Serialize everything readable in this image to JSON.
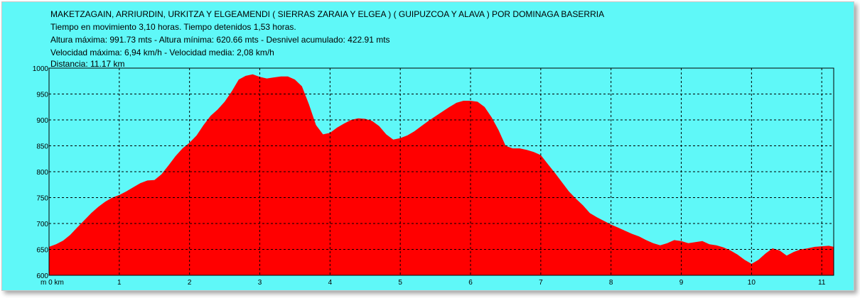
{
  "header": {
    "title": "MAKETZAGAIN, ARRIURDIN, URKITZA Y ELGEAMENDI ( SIERRAS ZARAIA Y ELGEA ) ( GUIPUZCOA Y ALAVA ) POR DOMINAGA BASERRIA",
    "times": "Tiempo en movimiento 3,10 horas. Tiempo detenidos 1,53 horas.",
    "altitudes": "Altura máxima: 991.73 mts - Altura mínima: 620.66 mts - Desnivel acumulado: 422.91 mts",
    "speeds": "Velocidad máxima: 6,94  km/h - Velocidad media: 2,08  km/h",
    "distance": "Distancia: 11.17 km"
  },
  "colors": {
    "background": "#5ff8f8",
    "fill": "#ff0000",
    "grid": "#000000"
  },
  "chart_data": {
    "type": "area",
    "xlim": [
      0,
      11.17
    ],
    "ylim": [
      600,
      1000
    ],
    "x_ticks": [
      1,
      2,
      3,
      4,
      5,
      6,
      7,
      8,
      9,
      10,
      11
    ],
    "x_tick_labels": [
      "1",
      "2",
      "3",
      "4",
      "5",
      "6",
      "7",
      "8",
      "9",
      "10",
      "11"
    ],
    "x_origin_label": "m 0 km",
    "y_ticks": [
      600,
      650,
      700,
      750,
      800,
      850,
      900,
      950,
      1000
    ],
    "y_tick_labels": [
      "600",
      "650",
      "700",
      "750",
      "800",
      "850",
      "900",
      "950",
      "1000"
    ],
    "grid": true,
    "series": [
      {
        "x": [
          0,
          0.1,
          0.2,
          0.3,
          0.4,
          0.5,
          0.6,
          0.7,
          0.8,
          0.9,
          1.0,
          1.1,
          1.2,
          1.3,
          1.4,
          1.5,
          1.6,
          1.7,
          1.8,
          1.9,
          2.0,
          2.1,
          2.2,
          2.3,
          2.4,
          2.5,
          2.6,
          2.7,
          2.8,
          2.9,
          3.0,
          3.1,
          3.2,
          3.3,
          3.4,
          3.5,
          3.6,
          3.7,
          3.8,
          3.9,
          4.0,
          4.1,
          4.2,
          4.3,
          4.4,
          4.5,
          4.6,
          4.7,
          4.8,
          4.9,
          5.0,
          5.1,
          5.2,
          5.3,
          5.4,
          5.5,
          5.6,
          5.7,
          5.8,
          5.9,
          6.0,
          6.1,
          6.2,
          6.3,
          6.4,
          6.5,
          6.6,
          6.7,
          6.8,
          6.9,
          7.0,
          7.1,
          7.2,
          7.3,
          7.4,
          7.5,
          7.6,
          7.7,
          7.8,
          7.9,
          8.0,
          8.1,
          8.2,
          8.3,
          8.4,
          8.5,
          8.6,
          8.7,
          8.8,
          8.9,
          9.0,
          9.1,
          9.2,
          9.3,
          9.4,
          9.5,
          9.6,
          9.7,
          9.8,
          9.9,
          10.0,
          10.1,
          10.2,
          10.3,
          10.4,
          10.5,
          10.6,
          10.7,
          10.8,
          10.9,
          11.0,
          11.1,
          11.17
        ],
        "values": [
          655,
          660,
          667,
          678,
          692,
          706,
          720,
          732,
          742,
          750,
          755,
          762,
          770,
          778,
          783,
          784,
          795,
          812,
          830,
          845,
          856,
          870,
          890,
          908,
          920,
          935,
          955,
          978,
          985,
          988,
          983,
          980,
          982,
          984,
          984,
          978,
          965,
          930,
          890,
          872,
          875,
          885,
          893,
          900,
          903,
          902,
          898,
          888,
          872,
          862,
          865,
          870,
          878,
          888,
          898,
          907,
          916,
          925,
          933,
          937,
          937,
          935,
          925,
          905,
          880,
          850,
          845,
          845,
          842,
          838,
          832,
          815,
          798,
          780,
          762,
          748,
          735,
          720,
          712,
          705,
          698,
          692,
          686,
          680,
          675,
          668,
          662,
          658,
          662,
          668,
          666,
          662,
          664,
          666,
          660,
          658,
          654,
          648,
          640,
          630,
          622,
          630,
          642,
          652,
          648,
          638,
          645,
          650,
          652,
          655,
          656,
          657,
          655
        ]
      }
    ]
  }
}
